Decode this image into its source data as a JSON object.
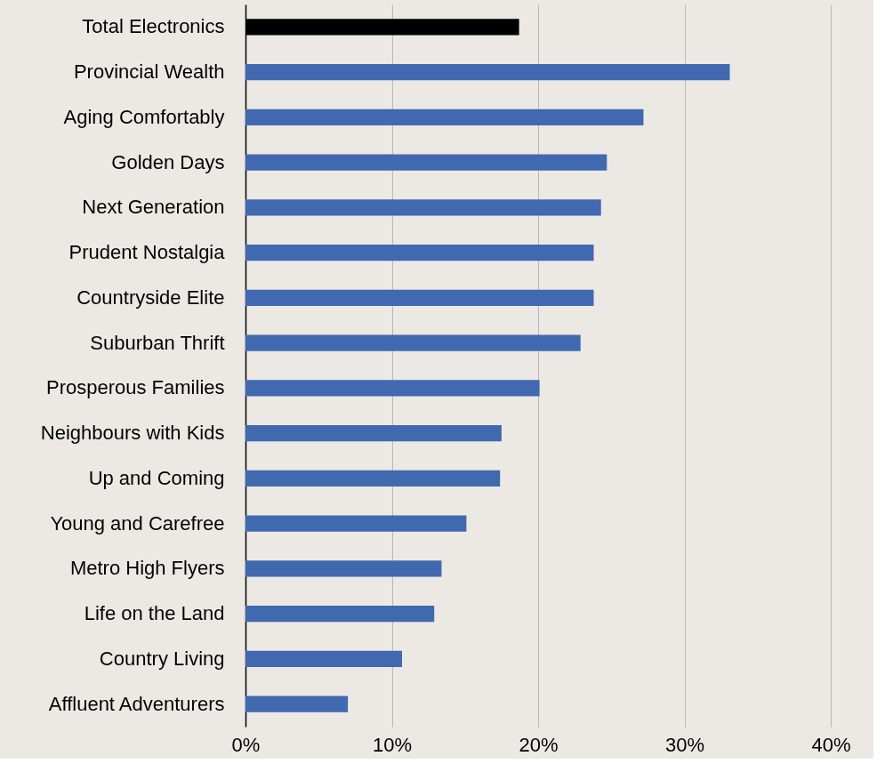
{
  "chart_data": {
    "type": "bar",
    "orientation": "horizontal",
    "categories": [
      "Total Electronics",
      "Provincial Wealth",
      "Aging Comfortably",
      "Golden Days",
      "Next Generation",
      "Prudent Nostalgia",
      "Countryside Elite",
      "Suburban Thrift",
      "Prosperous Families",
      "Neighbours with Kids",
      "Up and Coming",
      "Young and Carefree",
      "Metro High Flyers",
      "Life on the Land",
      "Country Living",
      "Affluent Adventurers"
    ],
    "values": [
      18.7,
      33.1,
      27.2,
      24.7,
      24.3,
      23.8,
      23.8,
      22.9,
      20.1,
      17.5,
      17.4,
      15.1,
      13.4,
      12.9,
      10.7,
      7.0
    ],
    "colors": [
      "#000000",
      "#4169b0",
      "#4169b0",
      "#4169b0",
      "#4169b0",
      "#4169b0",
      "#4169b0",
      "#4169b0",
      "#4169b0",
      "#4169b0",
      "#4169b0",
      "#4169b0",
      "#4169b0",
      "#4169b0",
      "#4169b0",
      "#4169b0"
    ],
    "xlim": [
      0,
      40
    ],
    "xticks": [
      {
        "value": 0,
        "label": "0%"
      },
      {
        "value": 10,
        "label": "10%"
      },
      {
        "value": 20,
        "label": "20%"
      },
      {
        "value": 30,
        "label": "30%"
      },
      {
        "value": 40,
        "label": "40%"
      }
    ],
    "grid": "x"
  }
}
